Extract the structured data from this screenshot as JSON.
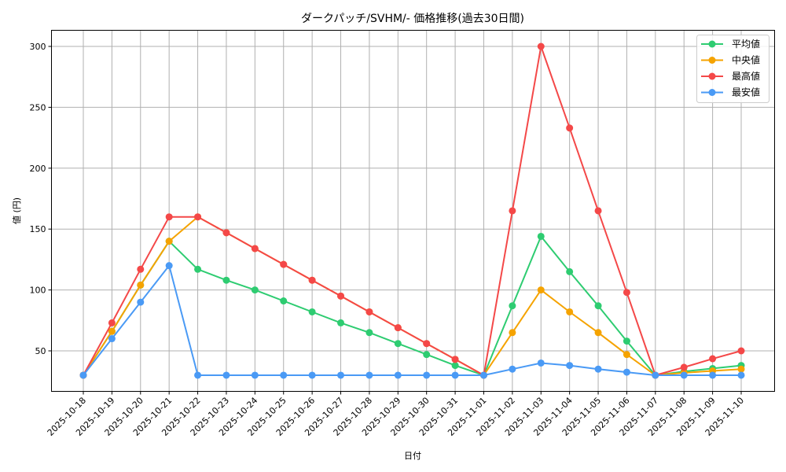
{
  "chart_data": {
    "type": "line",
    "title": "ダークパッチ/SVHM/- 価格推移(過去30日間)",
    "xlabel": "日付",
    "ylabel": "値 (円)",
    "ylim": [
      17,
      313
    ],
    "yticks": [
      50,
      100,
      150,
      200,
      250,
      300
    ],
    "grid": true,
    "legend_position": "upper right",
    "x": [
      "2025-10-18",
      "2025-10-19",
      "2025-10-20",
      "2025-10-21",
      "2025-10-22",
      "2025-10-23",
      "2025-10-24",
      "2025-10-25",
      "2025-10-26",
      "2025-10-27",
      "2025-10-28",
      "2025-10-29",
      "2025-10-30",
      "2025-10-31",
      "2025-11-01",
      "2025-11-02",
      "2025-11-03",
      "2025-11-04",
      "2025-11-05",
      "2025-11-06",
      "2025-11-07",
      "2025-11-08",
      "2025-11-09",
      "2025-11-10"
    ],
    "series": [
      {
        "name": "平均値",
        "color": "#2ecc71",
        "values": [
          30,
          66,
          104,
          140,
          117,
          108,
          100,
          91,
          82,
          73,
          65,
          56,
          47,
          38,
          30,
          87,
          144,
          115,
          87,
          58,
          30,
          33,
          35.5,
          38
        ]
      },
      {
        "name": "中央値",
        "color": "#f5a300",
        "values": [
          30,
          66,
          104,
          140,
          160,
          147,
          134,
          121,
          108,
          95,
          82,
          69,
          56,
          43,
          30,
          65,
          100,
          82,
          65,
          47,
          30,
          32,
          33.5,
          35
        ]
      },
      {
        "name": "最高値",
        "color": "#f44848",
        "values": [
          30,
          73,
          117,
          160,
          160,
          147,
          134,
          121,
          108,
          95,
          82,
          69,
          56,
          43,
          30,
          165,
          300,
          233,
          165,
          98,
          30,
          36.5,
          43.5,
          50
        ]
      },
      {
        "name": "最安値",
        "color": "#4a9af5",
        "values": [
          30,
          60,
          90,
          120,
          30,
          30,
          30,
          30,
          30,
          30,
          30,
          30,
          30,
          30,
          30,
          35,
          40,
          38,
          35,
          32.5,
          30,
          30,
          30,
          30
        ]
      }
    ]
  }
}
